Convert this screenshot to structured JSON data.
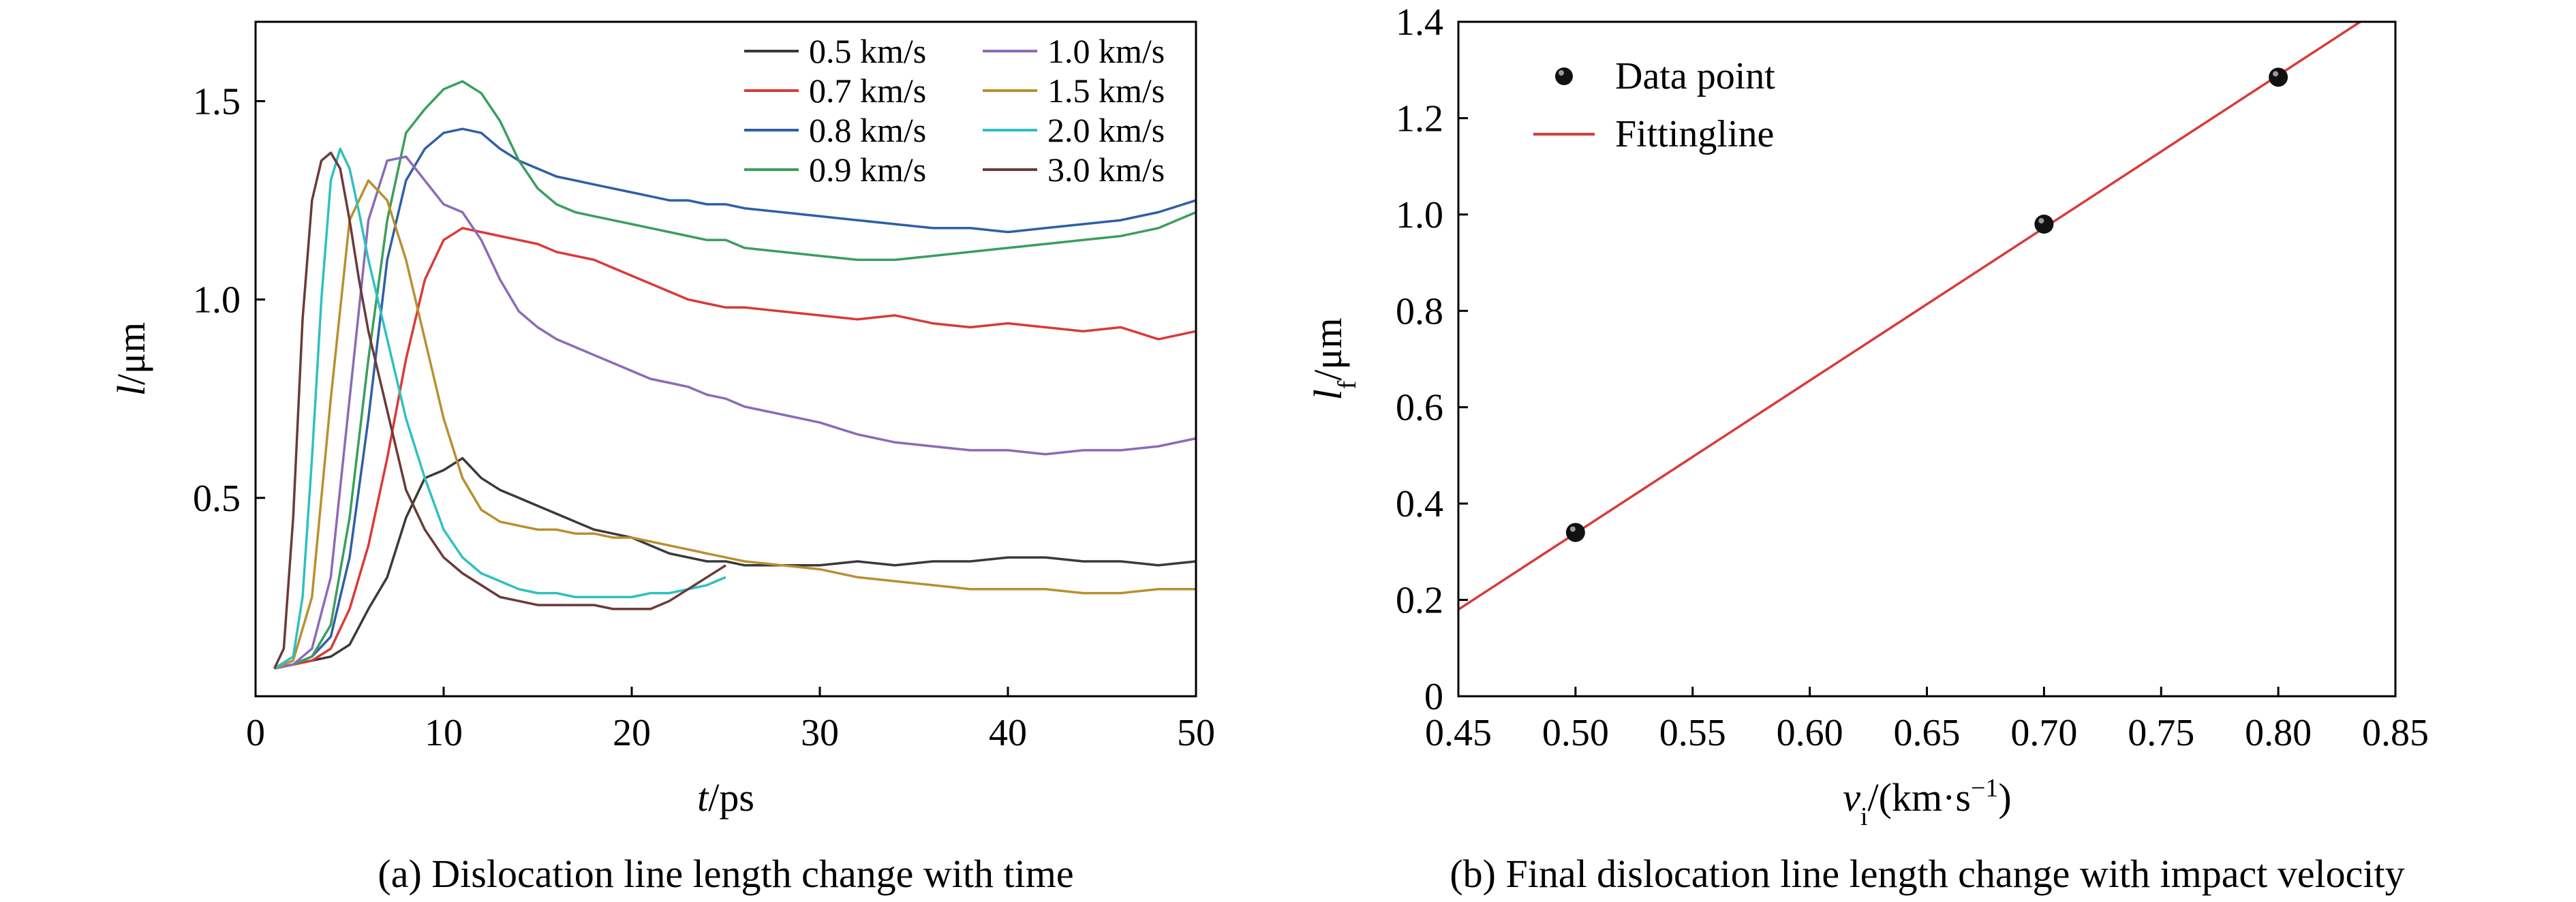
{
  "chart_data": [
    {
      "type": "line",
      "caption": "(a) Dislocation line length change with time",
      "xlabel_var": "t",
      "xlabel_unit": "/ps",
      "ylabel_var": "l",
      "ylabel_unit": "/μm",
      "xlim": [
        0,
        50
      ],
      "ylim": [
        0.0,
        1.7
      ],
      "x_ticks": [
        0,
        10,
        20,
        30,
        40,
        50
      ],
      "x_tick_labels": [
        "0",
        "10",
        "20",
        "30",
        "40",
        "50"
      ],
      "y_ticks": [
        0.5,
        1.0,
        1.5
      ],
      "y_tick_labels": [
        "0.5",
        "1.0",
        "1.5"
      ],
      "legend_position": "top-right",
      "series": [
        {
          "name": "0.5 km/s",
          "color": "#3a3a3a",
          "x": [
            1,
            2,
            3,
            4,
            5,
            6,
            7,
            8,
            9,
            10,
            11,
            12,
            13,
            14,
            15,
            16,
            17,
            18,
            19,
            20,
            21,
            22,
            23,
            24,
            25,
            26,
            28,
            30,
            32,
            34,
            36,
            38,
            40,
            42,
            44,
            46,
            48,
            50
          ],
          "y": [
            0.07,
            0.08,
            0.09,
            0.1,
            0.13,
            0.22,
            0.3,
            0.45,
            0.55,
            0.57,
            0.6,
            0.55,
            0.52,
            0.5,
            0.48,
            0.46,
            0.44,
            0.42,
            0.41,
            0.4,
            0.38,
            0.36,
            0.35,
            0.34,
            0.34,
            0.33,
            0.33,
            0.33,
            0.34,
            0.33,
            0.34,
            0.34,
            0.35,
            0.35,
            0.34,
            0.34,
            0.33,
            0.34
          ]
        },
        {
          "name": "0.7 km/s",
          "color": "#d93a3a",
          "x": [
            1,
            2,
            3,
            4,
            5,
            6,
            7,
            8,
            9,
            10,
            11,
            12,
            13,
            14,
            15,
            16,
            17,
            18,
            19,
            20,
            21,
            22,
            23,
            24,
            25,
            26,
            28,
            30,
            32,
            34,
            36,
            38,
            40,
            42,
            44,
            46,
            48,
            50
          ],
          "y": [
            0.07,
            0.08,
            0.09,
            0.12,
            0.22,
            0.38,
            0.6,
            0.85,
            1.05,
            1.15,
            1.18,
            1.17,
            1.16,
            1.15,
            1.14,
            1.12,
            1.11,
            1.1,
            1.08,
            1.06,
            1.04,
            1.02,
            1.0,
            0.99,
            0.98,
            0.98,
            0.97,
            0.96,
            0.95,
            0.96,
            0.94,
            0.93,
            0.94,
            0.93,
            0.92,
            0.93,
            0.9,
            0.92
          ]
        },
        {
          "name": "0.8 km/s",
          "color": "#2e5fa8",
          "x": [
            1,
            2,
            3,
            4,
            5,
            6,
            7,
            8,
            9,
            10,
            11,
            12,
            13,
            14,
            15,
            16,
            17,
            18,
            19,
            20,
            21,
            22,
            23,
            24,
            25,
            26,
            28,
            30,
            32,
            34,
            36,
            38,
            40,
            42,
            44,
            46,
            48,
            50
          ],
          "y": [
            0.07,
            0.08,
            0.1,
            0.15,
            0.35,
            0.7,
            1.1,
            1.3,
            1.38,
            1.42,
            1.43,
            1.42,
            1.38,
            1.35,
            1.33,
            1.31,
            1.3,
            1.29,
            1.28,
            1.27,
            1.26,
            1.25,
            1.25,
            1.24,
            1.24,
            1.23,
            1.22,
            1.21,
            1.2,
            1.19,
            1.18,
            1.18,
            1.17,
            1.18,
            1.19,
            1.2,
            1.22,
            1.25
          ]
        },
        {
          "name": "0.9 km/s",
          "color": "#3b9e5e",
          "x": [
            1,
            2,
            3,
            4,
            5,
            6,
            7,
            8,
            9,
            10,
            11,
            12,
            13,
            14,
            15,
            16,
            17,
            18,
            19,
            20,
            21,
            22,
            23,
            24,
            25,
            26,
            28,
            30,
            32,
            34,
            36,
            38,
            40,
            42,
            44,
            46,
            48,
            50
          ],
          "y": [
            0.07,
            0.08,
            0.1,
            0.18,
            0.45,
            0.85,
            1.2,
            1.42,
            1.48,
            1.53,
            1.55,
            1.52,
            1.45,
            1.35,
            1.28,
            1.24,
            1.22,
            1.21,
            1.2,
            1.19,
            1.18,
            1.17,
            1.16,
            1.15,
            1.15,
            1.13,
            1.12,
            1.11,
            1.1,
            1.1,
            1.11,
            1.12,
            1.13,
            1.14,
            1.15,
            1.16,
            1.18,
            1.22
          ]
        },
        {
          "name": "1.0 km/s",
          "color": "#8b6bb8",
          "x": [
            1,
            2,
            3,
            4,
            5,
            6,
            7,
            8,
            9,
            10,
            11,
            12,
            13,
            14,
            15,
            16,
            17,
            18,
            19,
            20,
            21,
            22,
            23,
            24,
            25,
            26,
            28,
            30,
            32,
            34,
            36,
            38,
            40,
            42,
            44,
            46,
            48,
            50
          ],
          "y": [
            0.07,
            0.08,
            0.12,
            0.3,
            0.75,
            1.2,
            1.35,
            1.36,
            1.3,
            1.24,
            1.22,
            1.15,
            1.05,
            0.97,
            0.93,
            0.9,
            0.88,
            0.86,
            0.84,
            0.82,
            0.8,
            0.79,
            0.78,
            0.76,
            0.75,
            0.73,
            0.71,
            0.69,
            0.66,
            0.64,
            0.63,
            0.62,
            0.62,
            0.61,
            0.62,
            0.62,
            0.63,
            0.65
          ]
        },
        {
          "name": "1.5 km/s",
          "color": "#b8902e",
          "x": [
            1,
            2,
            3,
            4,
            5,
            6,
            7,
            8,
            9,
            10,
            11,
            12,
            13,
            14,
            15,
            16,
            17,
            18,
            19,
            20,
            21,
            22,
            23,
            24,
            25,
            26,
            28,
            30,
            32,
            34,
            36,
            38,
            40,
            42,
            44,
            46,
            48,
            50
          ],
          "y": [
            0.07,
            0.09,
            0.25,
            0.75,
            1.2,
            1.3,
            1.25,
            1.1,
            0.9,
            0.7,
            0.55,
            0.47,
            0.44,
            0.43,
            0.42,
            0.42,
            0.41,
            0.41,
            0.4,
            0.4,
            0.39,
            0.38,
            0.37,
            0.36,
            0.35,
            0.34,
            0.33,
            0.32,
            0.3,
            0.29,
            0.28,
            0.27,
            0.27,
            0.27,
            0.26,
            0.26,
            0.27,
            0.27
          ]
        },
        {
          "name": "2.0 km/s",
          "color": "#2fc0c2",
          "x": [
            1,
            2,
            2.5,
            3,
            3.5,
            4,
            4.5,
            5,
            5.5,
            6,
            6.5,
            7,
            7.5,
            8,
            9,
            10,
            11,
            12,
            13,
            14,
            15,
            16,
            17,
            18,
            19,
            20,
            21,
            22,
            23,
            24,
            25
          ],
          "y": [
            0.07,
            0.1,
            0.25,
            0.6,
            1.0,
            1.3,
            1.38,
            1.33,
            1.22,
            1.1,
            1.0,
            0.9,
            0.8,
            0.7,
            0.55,
            0.42,
            0.35,
            0.31,
            0.29,
            0.27,
            0.26,
            0.26,
            0.25,
            0.25,
            0.25,
            0.25,
            0.26,
            0.26,
            0.27,
            0.28,
            0.3
          ]
        },
        {
          "name": "3.0 km/s",
          "color": "#6b3a3a",
          "x": [
            1,
            1.5,
            2,
            2.5,
            3,
            3.5,
            4,
            4.5,
            5,
            5.5,
            6,
            6.5,
            7,
            7.5,
            8,
            9,
            10,
            11,
            12,
            13,
            14,
            15,
            16,
            17,
            18,
            19,
            20,
            21,
            22,
            23,
            24,
            25
          ],
          "y": [
            0.07,
            0.12,
            0.45,
            0.95,
            1.25,
            1.35,
            1.37,
            1.33,
            1.2,
            1.05,
            0.92,
            0.82,
            0.72,
            0.62,
            0.52,
            0.42,
            0.35,
            0.31,
            0.28,
            0.25,
            0.24,
            0.23,
            0.23,
            0.23,
            0.23,
            0.22,
            0.22,
            0.22,
            0.24,
            0.27,
            0.3,
            0.33
          ]
        }
      ]
    },
    {
      "type": "scatter",
      "caption": "(b) Final dislocation line length change with impact velocity",
      "xlabel_var": "v",
      "xlabel_sub": "i",
      "xlabel_unit_pre": "/(km·s",
      "xlabel_unit_sup": "−1",
      "xlabel_unit_post": ")",
      "ylabel_var": "l",
      "ylabel_sub": "f",
      "ylabel_unit": "/μm",
      "xlim": [
        0.45,
        0.85
      ],
      "ylim": [
        0,
        1.4
      ],
      "x_ticks": [
        0.45,
        0.5,
        0.55,
        0.6,
        0.65,
        0.7,
        0.75,
        0.8,
        0.85
      ],
      "x_tick_labels": [
        "0.45",
        "0.50",
        "0.55",
        "0.60",
        "0.65",
        "0.70",
        "0.75",
        "0.80",
        "0.85"
      ],
      "y_ticks": [
        0,
        0.2,
        0.4,
        0.6,
        0.8,
        1.0,
        1.2,
        1.4
      ],
      "y_tick_labels": [
        "0",
        "0.2",
        "0.4",
        "0.6",
        "0.8",
        "1.0",
        "1.2",
        "1.4"
      ],
      "legend_position": "top-left",
      "series": [
        {
          "name": "Data point",
          "kind": "scatter",
          "color": "#111111",
          "x": [
            0.5,
            0.7,
            0.8
          ],
          "y": [
            0.34,
            0.98,
            1.285
          ]
        },
        {
          "name": "Fittingline",
          "kind": "line",
          "color": "#d93a3a",
          "x": [
            0.45,
            0.835
          ],
          "y": [
            0.18,
            1.4
          ]
        }
      ]
    }
  ]
}
